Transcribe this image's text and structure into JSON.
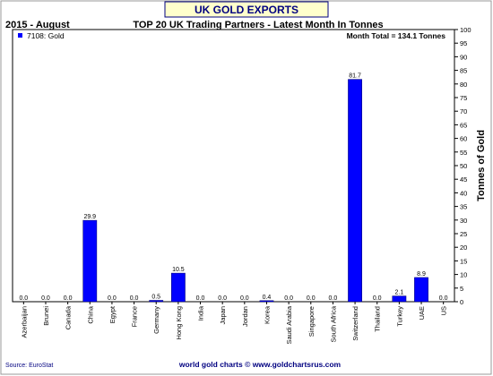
{
  "banner": "UK GOLD EXPORTS",
  "period": "2015 - August",
  "chart_data": {
    "type": "bar",
    "title": "TOP 20 UK Trading Partners - Latest Month In Tonnes",
    "legend": {
      "label": "7108: Gold",
      "position": "top-left"
    },
    "annotation": "Month Total = 134.1 Tonnes",
    "ylabel": "Tonnes of Gold",
    "xlabel": "",
    "ylim": [
      0,
      100
    ],
    "y_ticks": [
      0,
      5,
      10,
      15,
      20,
      25,
      30,
      35,
      40,
      45,
      50,
      55,
      60,
      65,
      70,
      75,
      80,
      85,
      90,
      95,
      100
    ],
    "y_axis_side": "right",
    "grid": false,
    "categories": [
      "Azerbaijan",
      "Brunei",
      "Canada",
      "China",
      "Egypt",
      "France",
      "Germany",
      "Hong Kong",
      "India",
      "Japan",
      "Jordan",
      "Korea",
      "Saudi Arabia",
      "Singapore",
      "South Africa",
      "Switzerland",
      "Thailand",
      "Turkey",
      "UAE",
      "US"
    ],
    "values": [
      0.0,
      0.0,
      0.0,
      29.9,
      0.0,
      0.0,
      0.5,
      10.5,
      0.0,
      0.0,
      0.0,
      0.4,
      0.0,
      0.0,
      0.0,
      81.7,
      0.0,
      2.1,
      8.9,
      0.0
    ],
    "value_labels": [
      "0.0",
      "0.0",
      "0.0",
      "29.9",
      "0.0",
      "0.0",
      "0.5",
      "10.5",
      "0.0",
      "0.0",
      "0.0",
      "0.4",
      "0.0",
      "0.0",
      "0.0",
      "81.7",
      "0.0",
      "2.1",
      "8.9",
      "0.0"
    ],
    "bar_color": "#0000ff"
  },
  "footer": {
    "source": "Source: EuroStat",
    "credit": "world gold charts © www.goldchartsrus.com"
  },
  "colors": {
    "banner_bg": "#ffffcc",
    "banner_text": "#000080",
    "source_text": "#000080",
    "credit_text": "#000080"
  }
}
